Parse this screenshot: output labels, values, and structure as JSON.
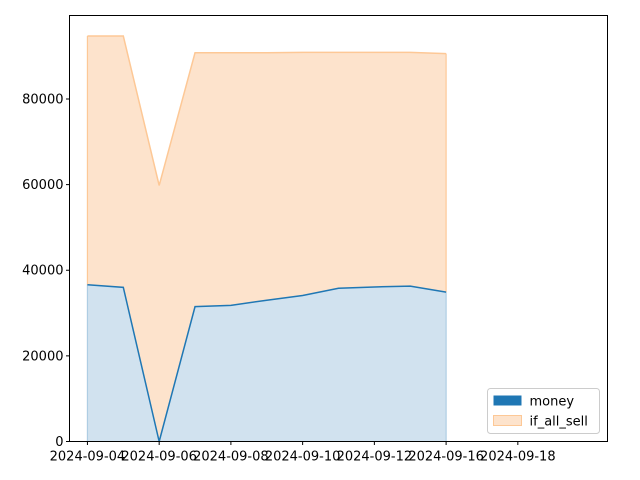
{
  "chart_data": {
    "type": "area",
    "title": "",
    "xlabel": "",
    "ylabel": "",
    "x": [
      "2024-09-04",
      "2024-09-05",
      "2024-09-06",
      "2024-09-07",
      "2024-09-08",
      "2024-09-09",
      "2024-09-10",
      "2024-09-11",
      "2024-09-12",
      "2024-09-13",
      "2024-09-14",
      "2024-09-15",
      "2024-09-16",
      "2024-09-17",
      "2024-09-18"
    ],
    "xlim": [
      "2024-09-03T12:00",
      "2024-09-18T12:00"
    ],
    "ylim": [
      0,
      99500
    ],
    "x_tick_labels": [
      "2024-09-04",
      "2024-09-06",
      "2024-09-08",
      "2024-09-10",
      "2024-09-12",
      "2024-09-16",
      "2024-09-18"
    ],
    "y_ticks": [
      0,
      20000,
      40000,
      60000,
      80000
    ],
    "y_tick_labels": [
      "0",
      "20000",
      "40000",
      "60000",
      "80000"
    ],
    "series": [
      {
        "name": "money",
        "color": "#1f77b4",
        "points": [
          {
            "x": "2024-09-04",
            "y": 36600
          },
          {
            "x": "2024-09-05",
            "y": 36000
          },
          {
            "x": "2024-09-06",
            "y": 0
          },
          {
            "x": "2024-09-07",
            "y": 31500
          },
          {
            "x": "2024-09-08",
            "y": 31800
          },
          {
            "x": "2024-09-09",
            "y": 33000
          },
          {
            "x": "2024-09-10",
            "y": 34100
          },
          {
            "x": "2024-09-11",
            "y": 35800
          },
          {
            "x": "2024-09-12",
            "y": 36100
          },
          {
            "x": "2024-09-13",
            "y": 36300
          },
          {
            "x": "2024-09-14",
            "y": 34900
          }
        ]
      },
      {
        "name": "if_all_sell",
        "color": "#ffbb78",
        "points": [
          {
            "x": "2024-09-04",
            "y": 94700
          },
          {
            "x": "2024-09-05",
            "y": 94700
          },
          {
            "x": "2024-09-06",
            "y": 59800
          },
          {
            "x": "2024-09-07",
            "y": 90800
          },
          {
            "x": "2024-09-08",
            "y": 90800
          },
          {
            "x": "2024-09-09",
            "y": 90800
          },
          {
            "x": "2024-09-10",
            "y": 90900
          },
          {
            "x": "2024-09-11",
            "y": 90900
          },
          {
            "x": "2024-09-12",
            "y": 90900
          },
          {
            "x": "2024-09-13",
            "y": 90900
          },
          {
            "x": "2024-09-14",
            "y": 90600
          }
        ]
      }
    ],
    "legend": {
      "position": "lower-right",
      "entries": [
        "money",
        "if_all_sell"
      ]
    },
    "grid": false
  }
}
